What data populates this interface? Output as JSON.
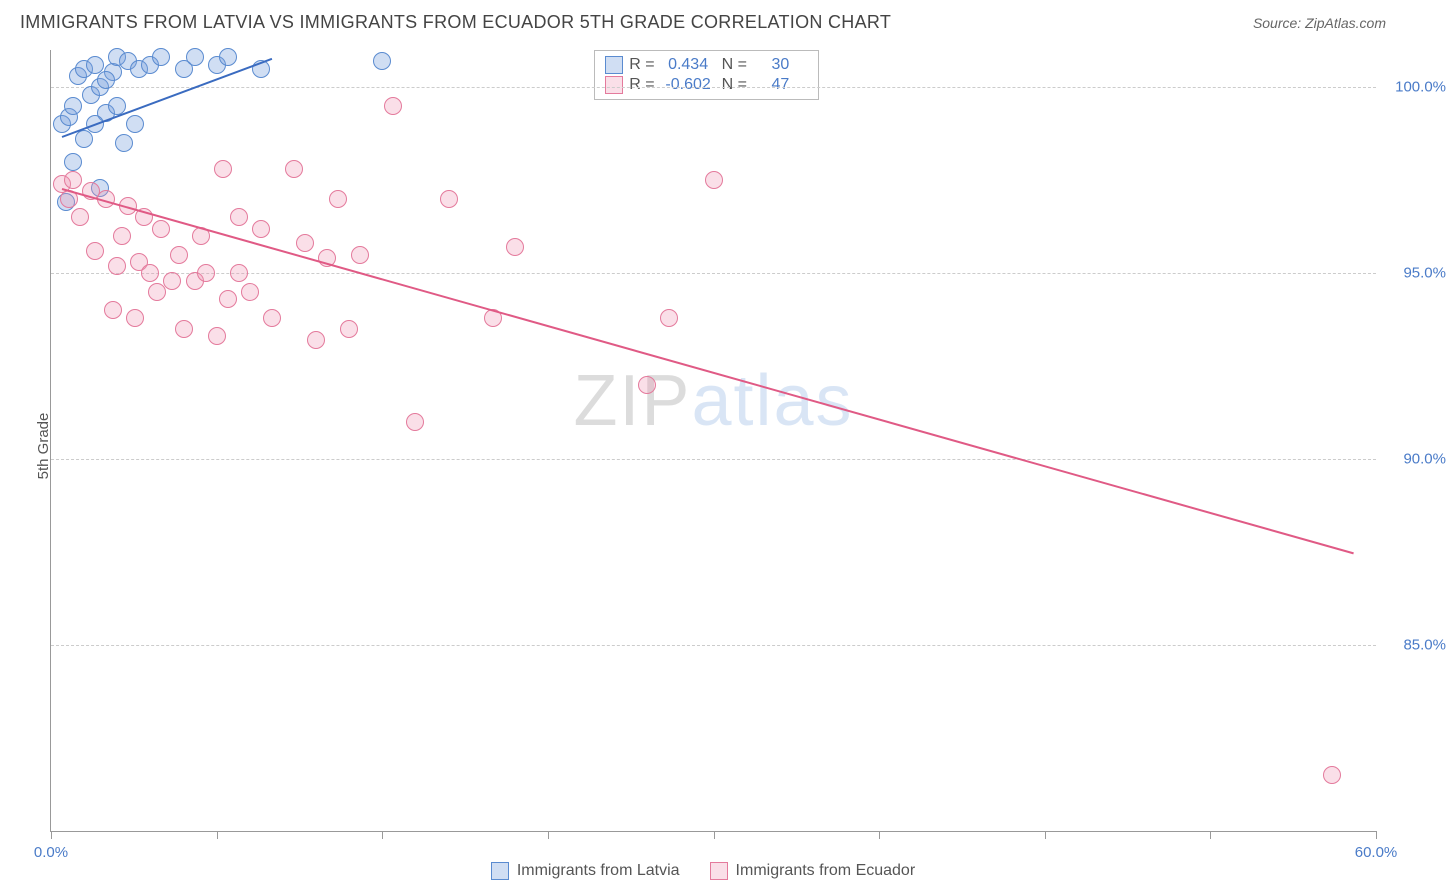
{
  "header": {
    "title": "IMMIGRANTS FROM LATVIA VS IMMIGRANTS FROM ECUADOR 5TH GRADE CORRELATION CHART",
    "source": "Source: ZipAtlas.com"
  },
  "watermark": {
    "zip": "ZIP",
    "atlas": "atlas"
  },
  "chart": {
    "type": "scatter",
    "ylabel": "5th Grade",
    "background_color": "#ffffff",
    "grid_color": "#cccccc",
    "axis_color": "#999999",
    "label_color": "#4a7bc8",
    "label_fontsize": 15,
    "xlim": [
      0,
      60
    ],
    "ylim": [
      80,
      101
    ],
    "yticks": [
      85.0,
      90.0,
      95.0,
      100.0
    ],
    "ytick_labels": [
      "85.0%",
      "90.0%",
      "95.0%",
      "100.0%"
    ],
    "xticks": [
      0,
      7.5,
      15,
      22.5,
      30,
      37.5,
      45,
      52.5,
      60
    ],
    "xtick_labels_shown": {
      "0": "0.0%",
      "60": "60.0%"
    },
    "marker_radius": 9,
    "marker_stroke_width": 1.3,
    "series": [
      {
        "name": "Immigrants from Latvia",
        "fill": "rgba(120,160,220,0.35)",
        "stroke": "#5a8bd0",
        "swatch_fill": "rgba(120,160,220,0.35)",
        "swatch_border": "#5a8bd0",
        "r_label": "R =",
        "r_value": "0.434",
        "n_label": "N =",
        "n_value": "30",
        "trend": {
          "x1": 0.5,
          "y1": 98.7,
          "x2": 10.0,
          "y2": 100.8,
          "color": "#3a6bc0",
          "width": 2
        },
        "points": [
          [
            0.5,
            99.0
          ],
          [
            0.8,
            99.2
          ],
          [
            1.0,
            99.5
          ],
          [
            1.2,
            100.3
          ],
          [
            1.5,
            100.5
          ],
          [
            1.8,
            99.8
          ],
          [
            2.0,
            100.6
          ],
          [
            2.2,
            100.0
          ],
          [
            2.5,
            99.3
          ],
          [
            2.8,
            100.4
          ],
          [
            3.0,
            100.8
          ],
          [
            3.3,
            98.5
          ],
          [
            3.5,
            100.7
          ],
          [
            3.8,
            99.0
          ],
          [
            4.0,
            100.5
          ],
          [
            1.0,
            98.0
          ],
          [
            1.5,
            98.6
          ],
          [
            2.0,
            99.0
          ],
          [
            2.5,
            100.2
          ],
          [
            3.0,
            99.5
          ],
          [
            4.5,
            100.6
          ],
          [
            5.0,
            100.8
          ],
          [
            6.0,
            100.5
          ],
          [
            6.5,
            100.8
          ],
          [
            7.5,
            100.6
          ],
          [
            8.0,
            100.8
          ],
          [
            9.5,
            100.5
          ],
          [
            15.0,
            100.7
          ],
          [
            2.2,
            97.3
          ],
          [
            0.7,
            96.9
          ]
        ]
      },
      {
        "name": "Immigrants from Ecuador",
        "fill": "rgba(240,150,180,0.3)",
        "stroke": "#e47a9c",
        "swatch_fill": "rgba(240,150,180,0.3)",
        "swatch_border": "#e47a9c",
        "r_label": "R =",
        "r_value": "-0.602",
        "n_label": "N =",
        "n_value": "47",
        "trend": {
          "x1": 0.5,
          "y1": 97.3,
          "x2": 59.0,
          "y2": 87.5,
          "color": "#e05a85",
          "width": 2
        },
        "points": [
          [
            0.5,
            97.4
          ],
          [
            1.0,
            97.5
          ],
          [
            1.3,
            96.5
          ],
          [
            1.8,
            97.2
          ],
          [
            2.0,
            95.6
          ],
          [
            2.5,
            97.0
          ],
          [
            2.8,
            94.0
          ],
          [
            3.0,
            95.2
          ],
          [
            3.5,
            96.8
          ],
          [
            3.8,
            93.8
          ],
          [
            4.0,
            95.3
          ],
          [
            4.5,
            95.0
          ],
          [
            4.8,
            94.5
          ],
          [
            5.0,
            96.2
          ],
          [
            5.5,
            94.8
          ],
          [
            5.8,
            95.5
          ],
          [
            6.0,
            93.5
          ],
          [
            6.5,
            94.8
          ],
          [
            7.0,
            95.0
          ],
          [
            7.5,
            93.3
          ],
          [
            7.8,
            97.8
          ],
          [
            8.0,
            94.3
          ],
          [
            8.5,
            95.0
          ],
          [
            9.0,
            94.5
          ],
          [
            9.5,
            96.2
          ],
          [
            10.0,
            93.8
          ],
          [
            11.0,
            97.8
          ],
          [
            11.5,
            95.8
          ],
          [
            12.0,
            93.2
          ],
          [
            12.5,
            95.4
          ],
          [
            13.0,
            97.0
          ],
          [
            13.5,
            93.5
          ],
          [
            14.0,
            95.5
          ],
          [
            15.5,
            99.5
          ],
          [
            16.5,
            91.0
          ],
          [
            18.0,
            97.0
          ],
          [
            20.0,
            93.8
          ],
          [
            21.0,
            95.7
          ],
          [
            27.0,
            92.0
          ],
          [
            28.0,
            93.8
          ],
          [
            30.0,
            97.5
          ],
          [
            58.0,
            81.5
          ],
          [
            3.2,
            96.0
          ],
          [
            4.2,
            96.5
          ],
          [
            6.8,
            96.0
          ],
          [
            8.5,
            96.5
          ],
          [
            0.8,
            97.0
          ]
        ]
      }
    ]
  },
  "bottom_legend": [
    {
      "label": "Immigrants from Latvia",
      "fill": "rgba(120,160,220,0.35)",
      "border": "#5a8bd0"
    },
    {
      "label": "Immigrants from Ecuador",
      "fill": "rgba(240,150,180,0.3)",
      "border": "#e47a9c"
    }
  ]
}
